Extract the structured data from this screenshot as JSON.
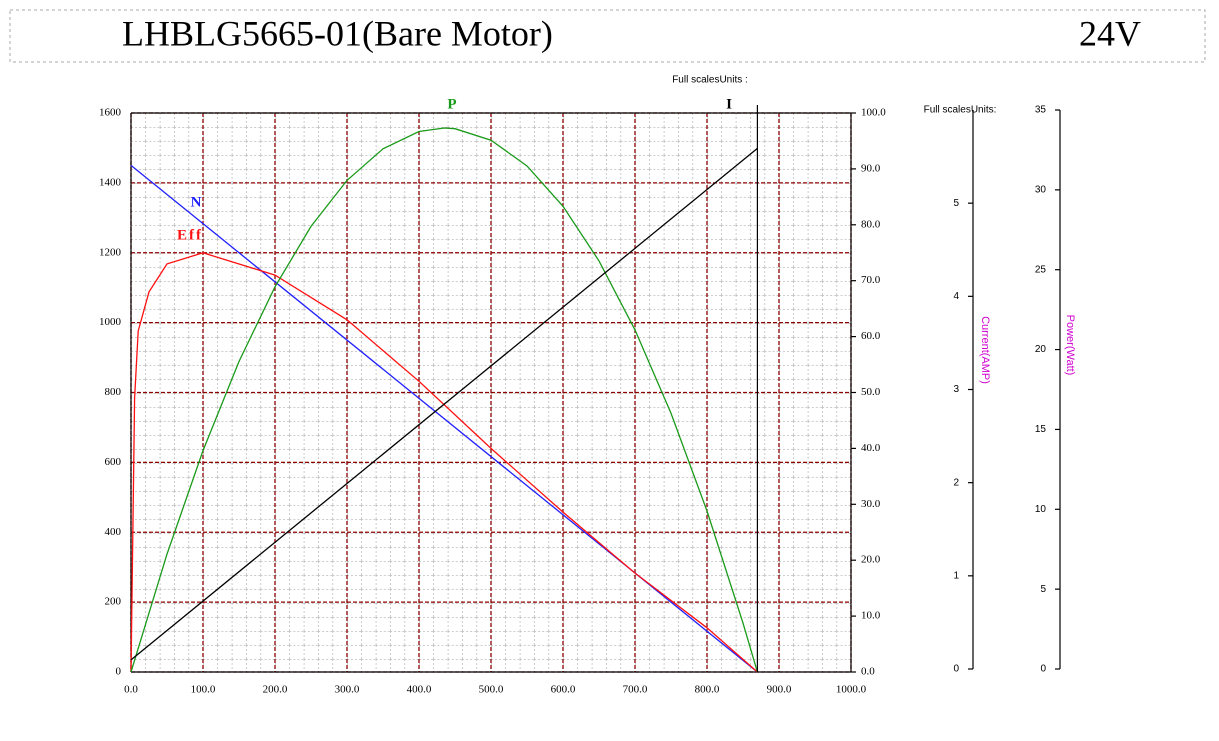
{
  "chart_data": {
    "type": "line",
    "title": "LHBLG5665-01(Bare Motor)",
    "voltage": "24V",
    "scale_note": "Full scalesUnits :",
    "scale_note_2": "Full scalesUnits:",
    "y3label": "Current(AMP)",
    "y4label": "Power(Watt)",
    "xlim": [
      0,
      1000
    ],
    "xticks": [
      {
        "value": 0,
        "label": "0.0"
      },
      {
        "value": 100,
        "label": "100.0"
      },
      {
        "value": 200,
        "label": "200.0"
      },
      {
        "value": 300,
        "label": "300.0"
      },
      {
        "value": 400,
        "label": "400.0"
      },
      {
        "value": 500,
        "label": "500.0"
      },
      {
        "value": 600,
        "label": "600.0"
      },
      {
        "value": 700,
        "label": "700.0"
      },
      {
        "value": 800,
        "label": "800.0"
      },
      {
        "value": 900,
        "label": "900.0"
      },
      {
        "value": 1000,
        "label": "1000.0"
      }
    ],
    "ylim": [
      0,
      1600
    ],
    "yticks": [
      0,
      200,
      400,
      600,
      800,
      1000,
      1200,
      1400,
      1600
    ],
    "y2lim": [
      0,
      100
    ],
    "y2ticks": [
      {
        "value": 0,
        "label": "0.0"
      },
      {
        "value": 10,
        "label": "10.0"
      },
      {
        "value": 20,
        "label": "20.0"
      },
      {
        "value": 30,
        "label": "30.0"
      },
      {
        "value": 40,
        "label": "40.0"
      },
      {
        "value": 50,
        "label": "50.0"
      },
      {
        "value": 60,
        "label": "60.0"
      },
      {
        "value": 70,
        "label": "70.0"
      },
      {
        "value": 80,
        "label": "80.0"
      },
      {
        "value": 90,
        "label": "90.0"
      },
      {
        "value": 100,
        "label": "100.0"
      }
    ],
    "y3lim": [
      0,
      6
    ],
    "y3ticks": [
      0,
      1,
      2,
      3,
      4,
      5
    ],
    "y4lim": [
      0,
      35
    ],
    "y4ticks": [
      0,
      5,
      10,
      15,
      20,
      25,
      30,
      35
    ],
    "grid": true,
    "series": [
      {
        "name": "N",
        "color": "#2020ff",
        "axis": "y",
        "x": [
          0,
          870
        ],
        "values": [
          1450,
          0
        ]
      },
      {
        "name": "Eff",
        "color": "#ff1010",
        "axis": "y2",
        "x": [
          0,
          5,
          10,
          25,
          50,
          100,
          200,
          300,
          400,
          500,
          600,
          700,
          800,
          870
        ],
        "values": [
          0,
          49,
          61,
          68,
          73,
          75,
          71,
          63,
          52,
          40,
          28.6,
          17.7,
          7.9,
          0
        ]
      },
      {
        "name": "P",
        "color": "#1a9a1a",
        "axis": "y4",
        "x": [
          0,
          50,
          100,
          150,
          200,
          250,
          300,
          350,
          400,
          435,
          450,
          500,
          550,
          600,
          650,
          700,
          750,
          800,
          850,
          870
        ],
        "values": [
          0,
          7.38,
          13.86,
          19.44,
          24.12,
          27.9,
          30.78,
          32.76,
          33.84,
          34.06,
          34.02,
          33.3,
          31.68,
          29.16,
          25.74,
          21.42,
          16.2,
          10.08,
          3.06,
          0
        ]
      },
      {
        "name": "I",
        "color": "#000000",
        "axis": "y3",
        "x": [
          0,
          870
        ],
        "values": [
          0.13,
          5.62
        ]
      }
    ]
  }
}
